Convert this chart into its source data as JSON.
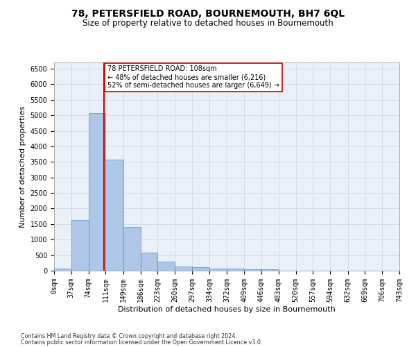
{
  "title": "78, PETERSFIELD ROAD, BOURNEMOUTH, BH7 6QL",
  "subtitle": "Size of property relative to detached houses in Bournemouth",
  "xlabel": "Distribution of detached houses by size in Bournemouth",
  "ylabel": "Number of detached properties",
  "footnote1": "Contains HM Land Registry data © Crown copyright and database right 2024.",
  "footnote2": "Contains public sector information licensed under the Open Government Licence v3.0.",
  "bar_edges": [
    0,
    37,
    74,
    111,
    149,
    186,
    223,
    260,
    297,
    334,
    372,
    409,
    446,
    483,
    520,
    557,
    594,
    632,
    669,
    706,
    743
  ],
  "bar_heights": [
    75,
    1625,
    5080,
    3570,
    1410,
    590,
    285,
    140,
    110,
    75,
    60,
    50,
    45,
    0,
    0,
    0,
    0,
    0,
    0,
    0
  ],
  "bar_color": "#aec6e8",
  "bar_edgecolor": "#5a8fc2",
  "bar_linewidth": 0.5,
  "vline_x": 108,
  "vline_color": "#cc0000",
  "vline_linewidth": 1.5,
  "annotation_text": "78 PETERSFIELD ROAD: 108sqm\n← 48% of detached houses are smaller (6,216)\n52% of semi-detached houses are larger (6,649) →",
  "ylim": [
    0,
    6700
  ],
  "yticks": [
    0,
    500,
    1000,
    1500,
    2000,
    2500,
    3000,
    3500,
    4000,
    4500,
    5000,
    5500,
    6000,
    6500
  ],
  "tick_labels": [
    "0sqm",
    "37sqm",
    "74sqm",
    "111sqm",
    "149sqm",
    "186sqm",
    "223sqm",
    "260sqm",
    "297sqm",
    "334sqm",
    "372sqm",
    "409sqm",
    "446sqm",
    "483sqm",
    "520sqm",
    "557sqm",
    "594sqm",
    "632sqm",
    "669sqm",
    "706sqm",
    "743sqm"
  ],
  "grid_color": "#d0d8e8",
  "background_color": "#eaf0f8",
  "title_fontsize": 10,
  "subtitle_fontsize": 8.5,
  "axis_fontsize": 8,
  "tick_fontsize": 7
}
